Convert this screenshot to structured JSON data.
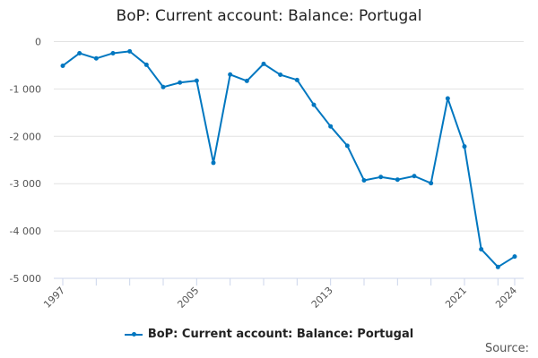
{
  "chart_data": {
    "type": "line",
    "title": "BoP: Current account: Balance: Portugal",
    "xlabel": "",
    "ylabel": "",
    "x": [
      1997,
      1998,
      1999,
      2000,
      2001,
      2002,
      2003,
      2004,
      2005,
      2006,
      2007,
      2008,
      2009,
      2010,
      2011,
      2012,
      2013,
      2014,
      2015,
      2016,
      2017,
      2018,
      2019,
      2020,
      2021,
      2022,
      2023,
      2024
    ],
    "series": [
      {
        "name": "BoP: Current account: Balance: Portugal",
        "color": "#0077c0",
        "values": [
          -510,
          -245,
          -355,
          -245,
          -205,
          -490,
          -960,
          -865,
          -825,
          -2560,
          -695,
          -830,
          -470,
          -700,
          -810,
          -1335,
          -1790,
          -2200,
          -2930,
          -2860,
          -2915,
          -2840,
          -2990,
          -1200,
          -2215,
          -4385,
          -4760,
          -4540
        ]
      }
    ],
    "ylim": [
      -5000,
      0
    ],
    "yticks": [
      0,
      -1000,
      -2000,
      -3000,
      -4000,
      -5000
    ],
    "ytick_labels": [
      "0",
      "-1 000",
      "-2 000",
      "-3 000",
      "-4 000",
      "-5 000"
    ],
    "xtick_labels": [
      "1997",
      "2005",
      "2013",
      "2021",
      "2024"
    ],
    "grid": true,
    "legend": "bottom",
    "source_label": "Source:"
  }
}
